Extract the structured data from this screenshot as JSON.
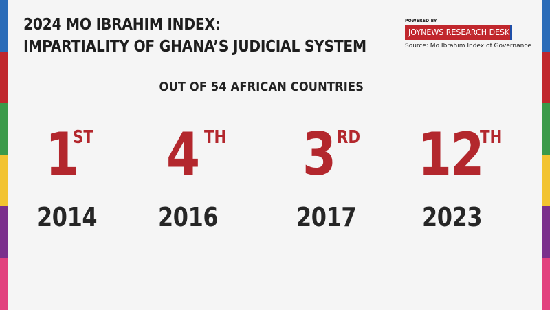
{
  "title": {
    "line1": "2024 MO IBRAHIM INDEX:",
    "line2": "IMPARTIALITY OF GHANA’S JUDICIAL SYSTEM"
  },
  "brand": {
    "powered_by": "POWERED BY",
    "name": "JOYNEWS RESEARCH DESK",
    "source": "Source: Mo Ibrahim Index of Governance"
  },
  "subtitle": "OUT OF 54 AFRICAN COUNTRIES",
  "rankings": [
    {
      "rank": "1",
      "suffix": "ST",
      "year": "2014"
    },
    {
      "rank": "4",
      "suffix": "TH",
      "year": "2016"
    },
    {
      "rank": "3",
      "suffix": "RD",
      "year": "2017"
    },
    {
      "rank": "12",
      "suffix": "TH",
      "year": "2023"
    }
  ],
  "colors": {
    "accent_red": "#b3272d",
    "brand_red": "#c1272d",
    "brand_blue": "#1f4fa8",
    "text_dark": "#1e1e1e",
    "background": "#f5f5f5",
    "edge_stripes": [
      "#2b6cb8",
      "#c0272d",
      "#3b9a4a",
      "#f2c331",
      "#7b2f8c",
      "#e2417e"
    ]
  }
}
